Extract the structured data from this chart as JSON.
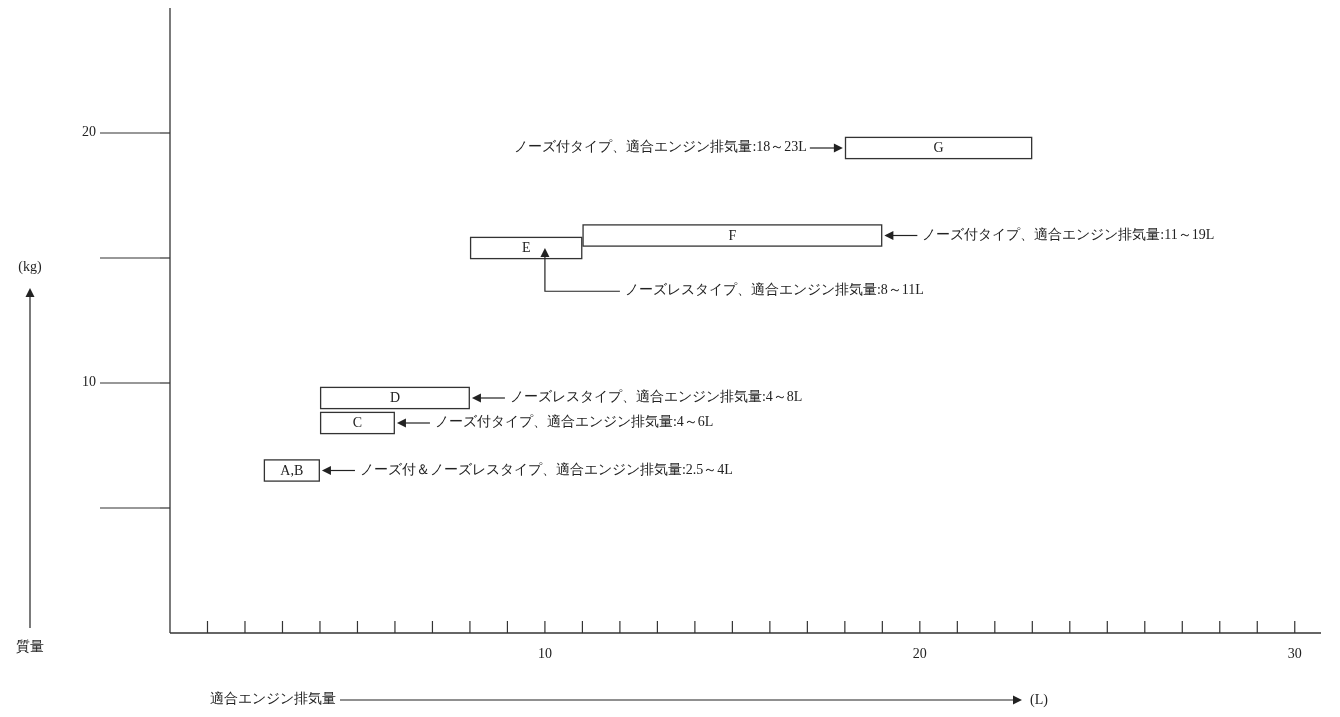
{
  "chart_data": {
    "type": "line",
    "xlabel": "適合エンジン排気量",
    "ylabel": "質量",
    "xlim": [
      0,
      30.7
    ],
    "ylim": [
      0,
      25
    ],
    "xticks": [
      {
        "value": 1,
        "label": null
      },
      {
        "value": 2,
        "label": null
      },
      {
        "value": 3,
        "label": null
      },
      {
        "value": 4,
        "label": null
      },
      {
        "value": 5,
        "label": null
      },
      {
        "value": 6,
        "label": null
      },
      {
        "value": 7,
        "label": null
      },
      {
        "value": 8,
        "label": null
      },
      {
        "value": 9,
        "label": null
      },
      10,
      {
        "value": 11,
        "label": null
      },
      {
        "value": 12,
        "label": null
      },
      {
        "value": 13,
        "label": null
      },
      {
        "value": 14,
        "label": null
      },
      {
        "value": 15,
        "label": null
      },
      {
        "value": 16,
        "label": null
      },
      {
        "value": 17,
        "label": null
      },
      {
        "value": 18,
        "label": null
      },
      {
        "value": 19,
        "label": null
      },
      20,
      {
        "value": 21,
        "label": null
      },
      {
        "value": 22,
        "label": null
      },
      {
        "value": 23,
        "label": null
      },
      {
        "value": 24,
        "label": null
      },
      {
        "value": 25,
        "label": null
      },
      {
        "value": 26,
        "label": null
      },
      {
        "value": 27,
        "label": null
      },
      {
        "value": 28,
        "label": null
      },
      {
        "value": 29,
        "label": null
      },
      30
    ],
    "yticks": [
      {
        "value": 5,
        "label": null
      },
      10,
      {
        "value": 15,
        "label": null
      },
      20
    ],
    "series": [
      {
        "name": "A,B",
        "color": "#333333",
        "x": [
          2.5,
          4
        ],
        "values": [
          6.5,
          6.5
        ]
      },
      {
        "name": "C",
        "color": "#333333",
        "x": [
          4,
          6
        ],
        "values": [
          8.4,
          8.4
        ]
      },
      {
        "name": "D",
        "color": "#333333",
        "x": [
          4,
          8
        ],
        "values": [
          9.4,
          9.4
        ]
      },
      {
        "name": "E",
        "color": "#333333",
        "x": [
          8,
          11
        ],
        "values": [
          15.4,
          15.4
        ]
      },
      {
        "name": "F",
        "color": "#333333",
        "x": [
          11,
          19
        ],
        "values": [
          15.9,
          15.9
        ]
      },
      {
        "name": "G",
        "color": "#333333",
        "x": [
          18,
          23
        ],
        "values": [
          19.4,
          19.4
        ]
      }
    ],
    "annotations": [
      {
        "text": "ノーズ付＆ノーズレスタイプ、適合エンジン排気量:2.5～4L",
        "x": 4,
        "y": 6.5
      },
      {
        "text": "ノーズ付タイプ、適合エンジン排気量:4～6L",
        "x": 6,
        "y": 8.4
      },
      {
        "text": "ノーズレスタイプ、適合エンジン排気量:4～8L",
        "x": 8,
        "y": 9.4
      },
      {
        "text": "ノーズレスタイプ、適合エンジン排気量:8～11L",
        "x": 10,
        "y": 15.4
      },
      {
        "text": "ノーズ付タイプ、適合エンジン排気量:11～19L",
        "x": 19,
        "y": 15.9
      },
      {
        "text": "ノーズ付タイプ、適合エンジン排気量:18～23L",
        "x": 18,
        "y": 19.4
      },
      "(L)",
      "(kg)"
    ]
  }
}
